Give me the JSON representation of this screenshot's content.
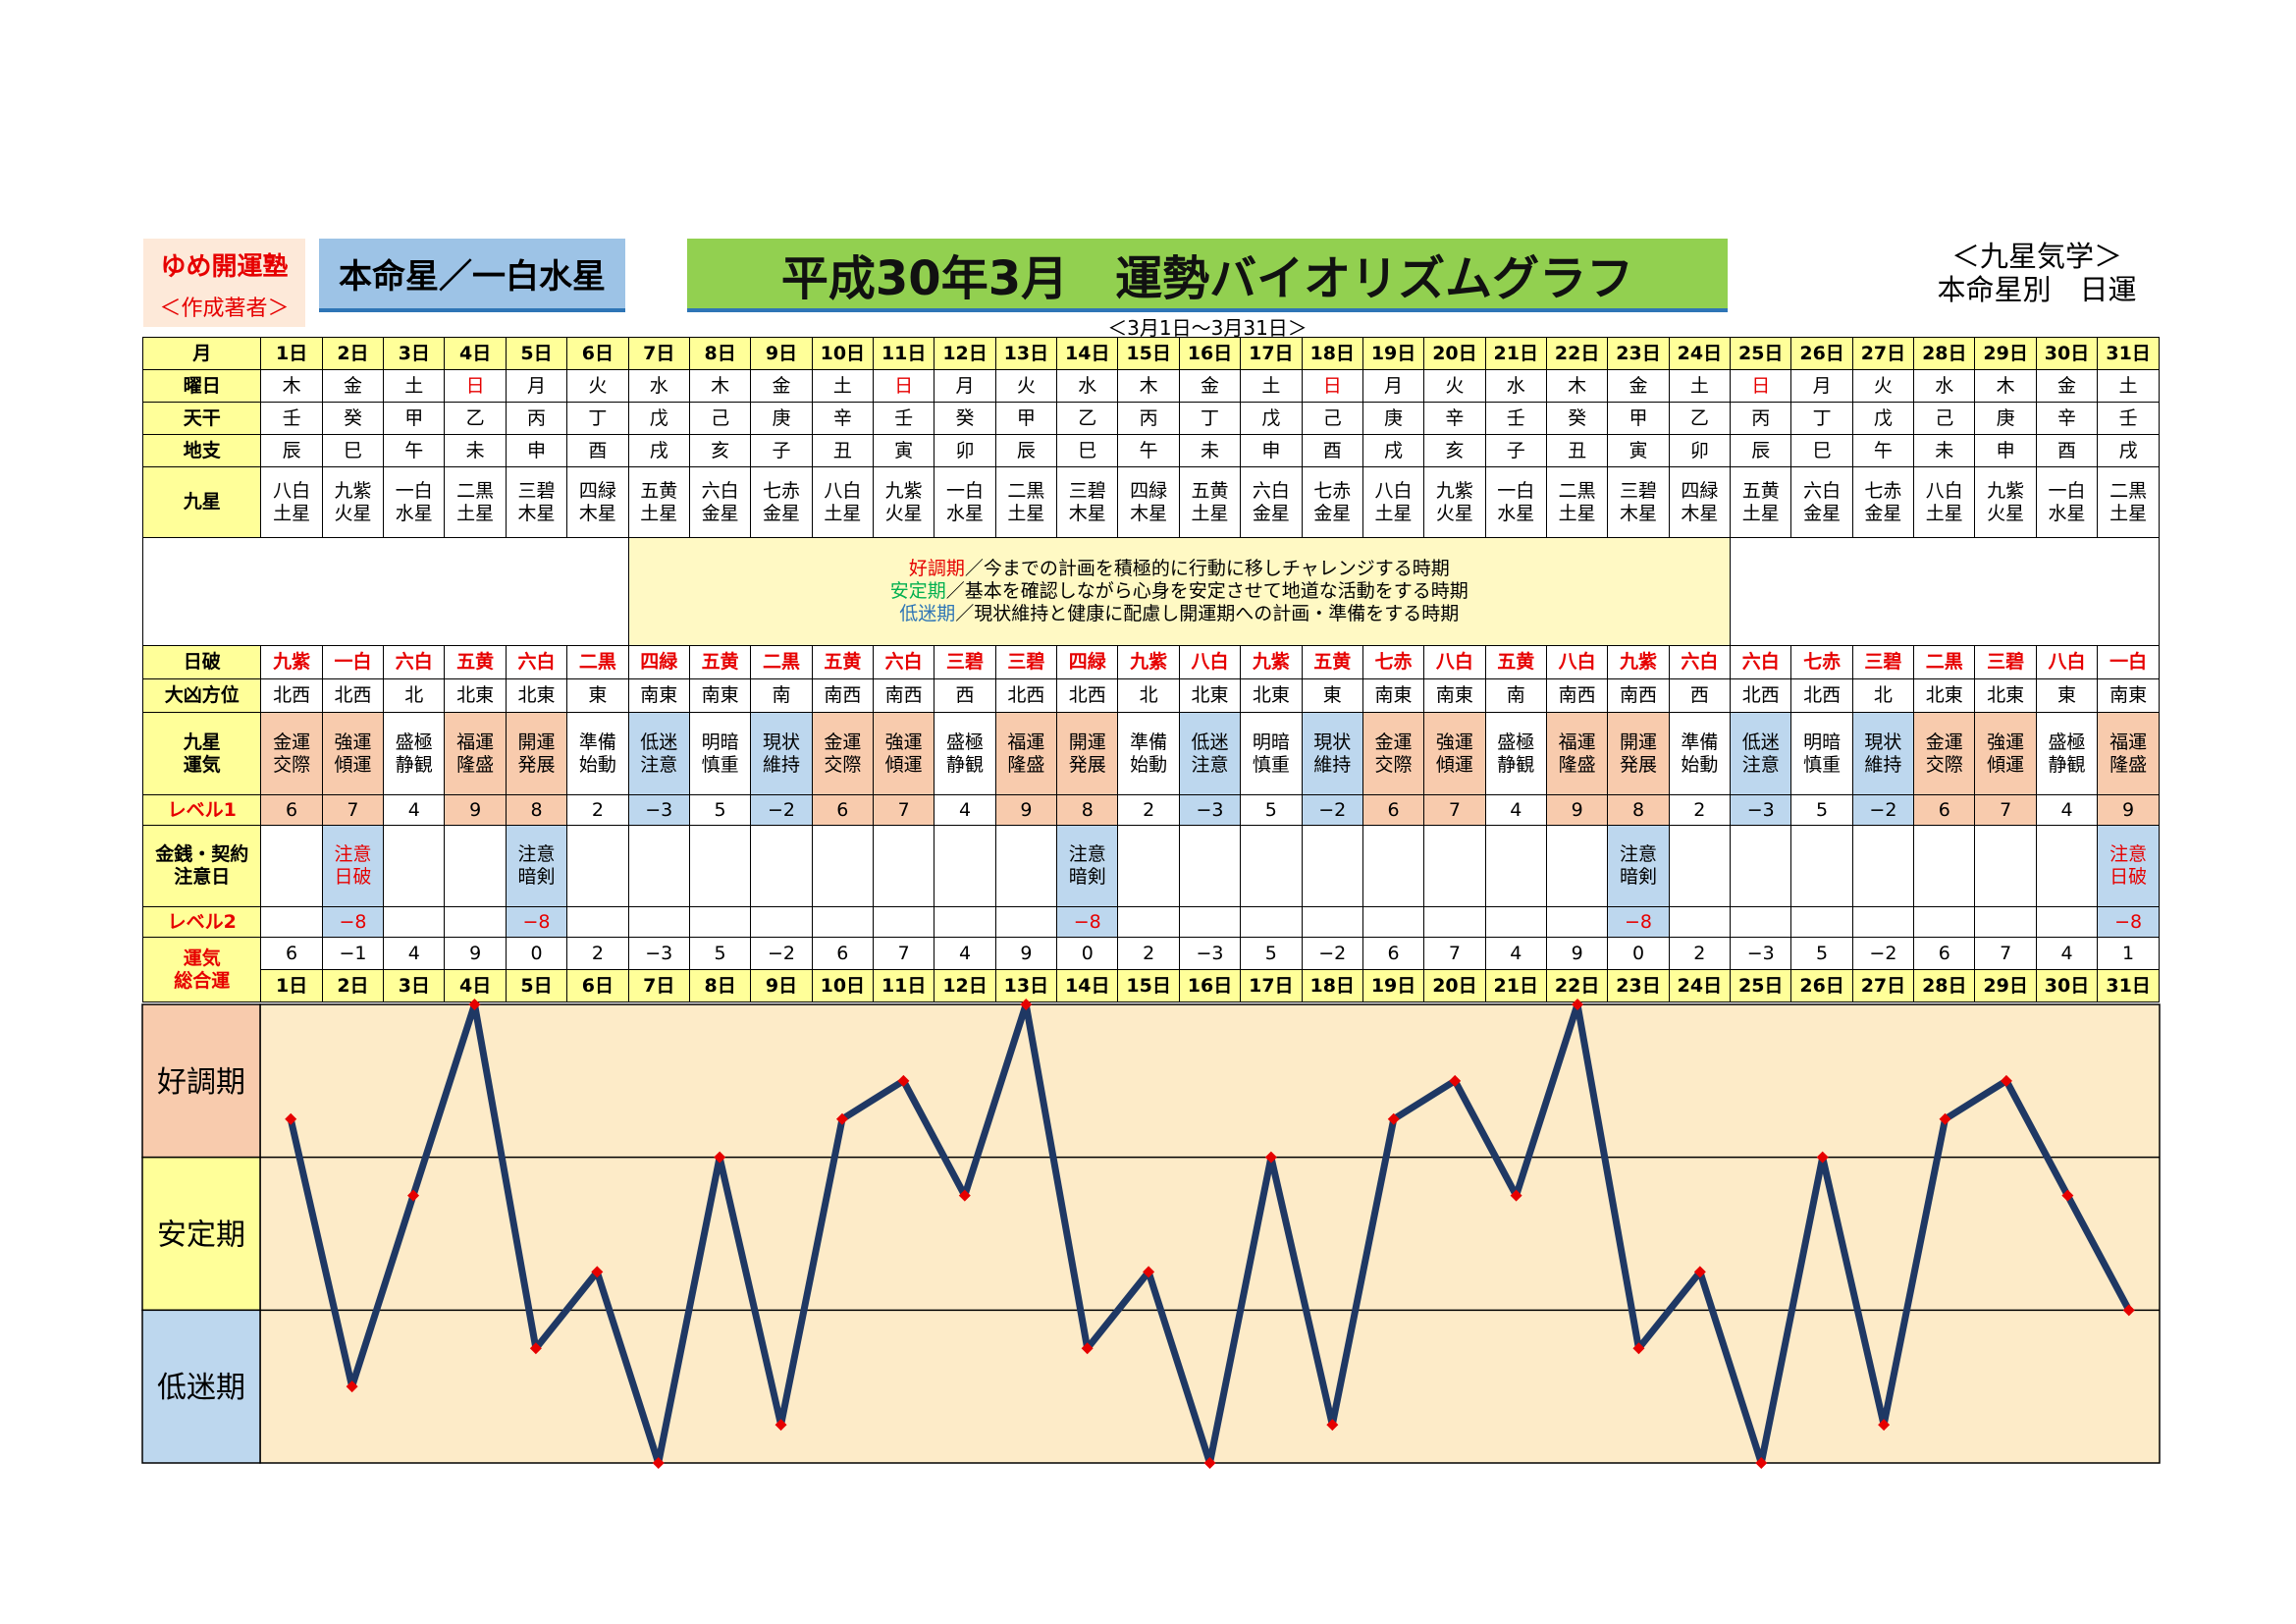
{
  "header": {
    "org_name": "ゆめ開運塾",
    "org_sub": "＜作成著者＞",
    "honmei": "本命星／一白水星",
    "title": "平成30年3月　運勢バイオリズムグラフ",
    "date_range": "＜3月1日～3月31日＞",
    "kyusei_line1": "＜九星気学＞",
    "kyusei_line2": "本命星別　日運"
  },
  "row_labels": {
    "month": "月",
    "weekday": "曜日",
    "tenkan": "天干",
    "chishi": "地支",
    "kyusei": "九星",
    "nippa": "日破",
    "daikyo": "大凶方位",
    "unki": [
      "九星",
      "運気"
    ],
    "level1": "レベル1",
    "kinsen": [
      "金銭・契約",
      "注意日"
    ],
    "level2": "レベル2",
    "total": [
      "運気",
      "総合運"
    ]
  },
  "legend": [
    {
      "term": "好調期",
      "desc": "／今までの計画を積極的に行動に移しチャレンジする時期",
      "tone": "good"
    },
    {
      "term": "安定期",
      "desc": "／基本を確認しながら心身を安定させて地道な活動をする時期",
      "tone": "stable"
    },
    {
      "term": "低迷期",
      "desc": "／現状維持と健康に配慮し開運期への計画・準備をする時期",
      "tone": "low"
    }
  ],
  "days": [
    "1日",
    "2日",
    "3日",
    "4日",
    "5日",
    "6日",
    "7日",
    "8日",
    "9日",
    "10日",
    "11日",
    "12日",
    "13日",
    "14日",
    "15日",
    "16日",
    "17日",
    "18日",
    "19日",
    "20日",
    "21日",
    "22日",
    "23日",
    "24日",
    "25日",
    "26日",
    "27日",
    "28日",
    "29日",
    "30日",
    "31日"
  ],
  "weekday": [
    "木",
    "金",
    "土",
    "日",
    "月",
    "火",
    "水",
    "木",
    "金",
    "土",
    "日",
    "月",
    "火",
    "水",
    "木",
    "金",
    "土",
    "日",
    "月",
    "火",
    "水",
    "木",
    "金",
    "土",
    "日",
    "月",
    "火",
    "水",
    "木",
    "金",
    "土"
  ],
  "tenkan": [
    "壬",
    "癸",
    "甲",
    "乙",
    "丙",
    "丁",
    "戊",
    "己",
    "庚",
    "辛",
    "壬",
    "癸",
    "甲",
    "乙",
    "丙",
    "丁",
    "戊",
    "己",
    "庚",
    "辛",
    "壬",
    "癸",
    "甲",
    "乙",
    "丙",
    "丁",
    "戊",
    "己",
    "庚",
    "辛",
    "壬"
  ],
  "chishi": [
    "辰",
    "巳",
    "午",
    "未",
    "申",
    "酉",
    "戌",
    "亥",
    "子",
    "丑",
    "寅",
    "卯",
    "辰",
    "巳",
    "午",
    "未",
    "申",
    "酉",
    "戌",
    "亥",
    "子",
    "丑",
    "寅",
    "卯",
    "辰",
    "巳",
    "午",
    "未",
    "申",
    "酉",
    "戌"
  ],
  "kyusei": [
    [
      "八白",
      "土星"
    ],
    [
      "九紫",
      "火星"
    ],
    [
      "一白",
      "水星"
    ],
    [
      "二黒",
      "土星"
    ],
    [
      "三碧",
      "木星"
    ],
    [
      "四緑",
      "木星"
    ],
    [
      "五黄",
      "土星"
    ],
    [
      "六白",
      "金星"
    ],
    [
      "七赤",
      "金星"
    ],
    [
      "八白",
      "土星"
    ],
    [
      "九紫",
      "火星"
    ],
    [
      "一白",
      "水星"
    ],
    [
      "二黒",
      "土星"
    ],
    [
      "三碧",
      "木星"
    ],
    [
      "四緑",
      "木星"
    ],
    [
      "五黄",
      "土星"
    ],
    [
      "六白",
      "金星"
    ],
    [
      "七赤",
      "金星"
    ],
    [
      "八白",
      "土星"
    ],
    [
      "九紫",
      "火星"
    ],
    [
      "一白",
      "水星"
    ],
    [
      "二黒",
      "土星"
    ],
    [
      "三碧",
      "木星"
    ],
    [
      "四緑",
      "木星"
    ],
    [
      "五黄",
      "土星"
    ],
    [
      "六白",
      "金星"
    ],
    [
      "七赤",
      "金星"
    ],
    [
      "八白",
      "土星"
    ],
    [
      "九紫",
      "火星"
    ],
    [
      "一白",
      "水星"
    ],
    [
      "二黒",
      "土星"
    ]
  ],
  "nippa": [
    "九紫",
    "一白",
    "六白",
    "五黄",
    "六白",
    "二黒",
    "四緑",
    "五黄",
    "二黒",
    "五黄",
    "六白",
    "三碧",
    "三碧",
    "四緑",
    "九紫",
    "八白",
    "九紫",
    "五黄",
    "七赤",
    "八白",
    "五黄",
    "八白",
    "九紫",
    "六白",
    "六白",
    "七赤",
    "三碧",
    "二黒",
    "三碧",
    "八白",
    "一白"
  ],
  "daikyo": [
    "北西",
    "北西",
    "北",
    "北東",
    "北東",
    "東",
    "南東",
    "南東",
    "南",
    "南西",
    "南西",
    "西",
    "北西",
    "北西",
    "北",
    "北東",
    "北東",
    "東",
    "南東",
    "南東",
    "南",
    "南西",
    "南西",
    "西",
    "北西",
    "北西",
    "北",
    "北東",
    "北東",
    "東",
    "南東"
  ],
  "unki": [
    [
      "金運",
      "交際"
    ],
    [
      "強運",
      "傾運"
    ],
    [
      "盛極",
      "静観"
    ],
    [
      "福運",
      "隆盛"
    ],
    [
      "開運",
      "発展"
    ],
    [
      "準備",
      "始動"
    ],
    [
      "低迷",
      "注意"
    ],
    [
      "明暗",
      "慎重"
    ],
    [
      "現状",
      "維持"
    ],
    [
      "金運",
      "交際"
    ],
    [
      "強運",
      "傾運"
    ],
    [
      "盛極",
      "静観"
    ],
    [
      "福運",
      "隆盛"
    ],
    [
      "開運",
      "発展"
    ],
    [
      "準備",
      "始動"
    ],
    [
      "低迷",
      "注意"
    ],
    [
      "明暗",
      "慎重"
    ],
    [
      "現状",
      "維持"
    ],
    [
      "金運",
      "交際"
    ],
    [
      "強運",
      "傾運"
    ],
    [
      "盛極",
      "静観"
    ],
    [
      "福運",
      "隆盛"
    ],
    [
      "開運",
      "発展"
    ],
    [
      "準備",
      "始動"
    ],
    [
      "低迷",
      "注意"
    ],
    [
      "明暗",
      "慎重"
    ],
    [
      "現状",
      "維持"
    ],
    [
      "金運",
      "交際"
    ],
    [
      "強運",
      "傾運"
    ],
    [
      "盛極",
      "静観"
    ],
    [
      "福運",
      "隆盛"
    ]
  ],
  "unki_tone": [
    "pink",
    "pink",
    "none",
    "pink",
    "pink",
    "none",
    "blue",
    "none",
    "blue",
    "pink",
    "pink",
    "none",
    "pink",
    "pink",
    "none",
    "blue",
    "none",
    "blue",
    "pink",
    "pink",
    "none",
    "pink",
    "pink",
    "none",
    "blue",
    "none",
    "blue",
    "pink",
    "pink",
    "none",
    "pink"
  ],
  "level1": [
    "6",
    "7",
    "4",
    "9",
    "8",
    "2",
    "-3",
    "5",
    "-2",
    "6",
    "7",
    "4",
    "9",
    "8",
    "2",
    "-3",
    "5",
    "-2",
    "6",
    "7",
    "4",
    "9",
    "8",
    "2",
    "-3",
    "5",
    "-2",
    "6",
    "7",
    "4",
    "9"
  ],
  "kinsen": {
    "2": {
      "lines": [
        "注意",
        "日破"
      ],
      "tone": "red"
    },
    "5": {
      "lines": [
        "注意",
        "暗剣"
      ],
      "tone": "black"
    },
    "14": {
      "lines": [
        "注意",
        "暗剣"
      ],
      "tone": "black"
    },
    "23": {
      "lines": [
        "注意",
        "暗剣"
      ],
      "tone": "black"
    },
    "31": {
      "lines": [
        "注意",
        "日破"
      ],
      "tone": "red"
    }
  },
  "level2": {
    "2": "-8",
    "5": "-8",
    "14": "-8",
    "23": "-8",
    "31": "-8"
  },
  "total": [
    "6",
    "-1",
    "4",
    "9",
    "0",
    "2",
    "-3",
    "5",
    "-2",
    "6",
    "7",
    "4",
    "9",
    "0",
    "2",
    "-3",
    "5",
    "-2",
    "6",
    "7",
    "4",
    "9",
    "0",
    "2",
    "-3",
    "5",
    "-2",
    "6",
    "7",
    "4",
    "1"
  ],
  "bands": [
    {
      "label": "好調期",
      "color": "#f8cbad"
    },
    {
      "label": "安定期",
      "color": "#ffff99"
    },
    {
      "label": "低迷期",
      "color": "#bdd7ee"
    }
  ],
  "chart_data": {
    "type": "line",
    "x": [
      "1日",
      "2日",
      "3日",
      "4日",
      "5日",
      "6日",
      "7日",
      "8日",
      "9日",
      "10日",
      "11日",
      "12日",
      "13日",
      "14日",
      "15日",
      "16日",
      "17日",
      "18日",
      "19日",
      "20日",
      "21日",
      "22日",
      "23日",
      "24日",
      "25日",
      "26日",
      "27日",
      "28日",
      "29日",
      "30日",
      "31日"
    ],
    "series": [
      {
        "values": [
          6,
          -1,
          4,
          9,
          0,
          2,
          -3,
          5,
          -2,
          6,
          7,
          4,
          9,
          0,
          2,
          -3,
          5,
          -2,
          6,
          7,
          4,
          9,
          0,
          2,
          -3,
          5,
          -2,
          6,
          7,
          4,
          1
        ]
      }
    ],
    "ylim": [
      -3,
      9
    ],
    "band_ranges": [
      [
        5,
        9
      ],
      [
        1,
        5
      ],
      [
        -3,
        1
      ]
    ],
    "line_color": "#1f3864",
    "marker_color": "#e60000",
    "plot_bg": "#fdebc8",
    "grid": false
  }
}
